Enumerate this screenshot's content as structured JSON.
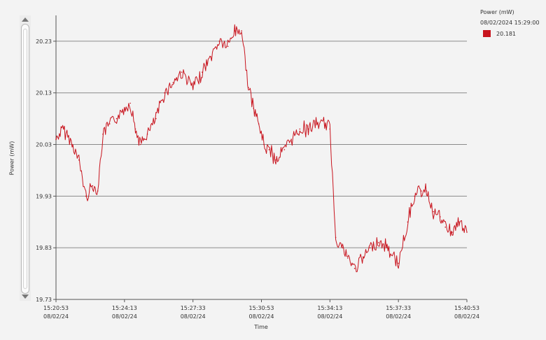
{
  "colors": {
    "line": "#c8141e",
    "grid": "#8a8a8a",
    "axis": "#555555",
    "background": "#f3f3f3"
  },
  "chart_data": {
    "type": "line",
    "title": "",
    "xlabel": "Time",
    "ylabel": "Power (mW)",
    "ylim": [
      19.73,
      20.28
    ],
    "grid": true,
    "legend_placement": "top-right",
    "legend": {
      "title": "Power (mW)",
      "timestamp": "08/02/2024 15:29:00",
      "entries": [
        {
          "value": "20.181"
        }
      ]
    },
    "y_ticks": [
      "19.73",
      "19.83",
      "19.93",
      "20.03",
      "20.13",
      "20.23"
    ],
    "x_ticks": [
      {
        "time": "15:20:53",
        "date": "08/02/24"
      },
      {
        "time": "15:24:13",
        "date": "08/02/24"
      },
      {
        "time": "15:27:33",
        "date": "08/02/24"
      },
      {
        "time": "15:30:53",
        "date": "08/02/24"
      },
      {
        "time": "15:34:13",
        "date": "08/02/24"
      },
      {
        "time": "15:37:33",
        "date": "08/02/24"
      },
      {
        "time": "15:40:53",
        "date": "08/02/24"
      }
    ],
    "series": [
      {
        "x": [
          "15:20:53",
          "15:21:15",
          "15:21:40",
          "15:22:00",
          "15:22:20",
          "15:22:40",
          "15:22:55",
          "15:23:10",
          "15:23:30",
          "15:23:50",
          "15:24:13",
          "15:24:30",
          "15:24:45",
          "15:25:00",
          "15:25:20",
          "15:25:45",
          "15:26:10",
          "15:26:35",
          "15:27:00",
          "15:27:33",
          "15:28:00",
          "15:28:25",
          "15:28:50",
          "15:29:15",
          "15:29:35",
          "15:29:55",
          "15:30:15",
          "15:30:30",
          "15:30:45",
          "15:31:00",
          "15:31:15",
          "15:31:35",
          "15:32:00",
          "15:32:20",
          "15:32:45",
          "15:33:10",
          "15:33:35",
          "15:34:00",
          "15:34:13",
          "15:34:30",
          "15:34:50",
          "15:35:05",
          "15:35:25",
          "15:35:50",
          "15:36:10",
          "15:36:35",
          "15:37:00",
          "15:37:33",
          "15:38:00",
          "15:38:20",
          "15:38:40",
          "15:38:55",
          "15:39:15",
          "15:39:35",
          "15:39:50",
          "15:40:10",
          "15:40:30",
          "15:40:53"
        ],
        "y": [
          20.04,
          20.06,
          20.03,
          20.0,
          19.93,
          19.95,
          19.94,
          20.05,
          20.07,
          20.08,
          20.1,
          20.11,
          20.06,
          20.03,
          20.05,
          20.08,
          20.13,
          20.15,
          20.17,
          20.14,
          20.17,
          20.2,
          20.23,
          20.22,
          20.25,
          20.25,
          20.14,
          20.1,
          20.07,
          20.03,
          20.02,
          20.0,
          20.02,
          20.04,
          20.06,
          20.06,
          20.07,
          20.07,
          20.06,
          19.85,
          19.83,
          19.81,
          19.79,
          19.81,
          19.83,
          19.84,
          19.83,
          19.8,
          19.88,
          19.93,
          19.94,
          19.94,
          19.9,
          19.89,
          19.87,
          19.86,
          19.88,
          19.86
        ]
      }
    ]
  }
}
